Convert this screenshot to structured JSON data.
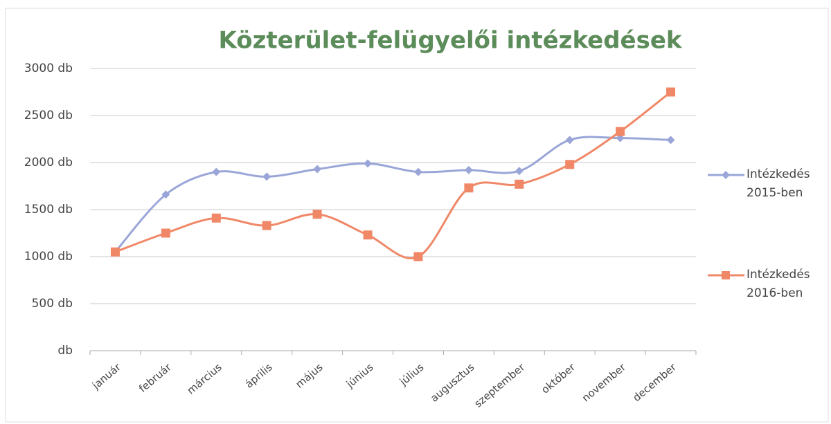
{
  "chart_data": {
    "type": "line",
    "title": "Közterület-felügyelői intézkedések",
    "categories": [
      "január",
      "február",
      "március",
      "április",
      "május",
      "június",
      "július",
      "augusztus",
      "szeptember",
      "október",
      "november",
      "december"
    ],
    "series": [
      {
        "name": "Intézkedés 2015-ben",
        "color": "#9aa6d8",
        "marker": "diamond",
        "values": [
          1050,
          1660,
          1900,
          1850,
          1930,
          1990,
          1900,
          1920,
          1910,
          2240,
          2260,
          2240
        ]
      },
      {
        "name": "Intézkedés 2016-ben",
        "color": "#f08868",
        "marker": "square",
        "values": [
          1050,
          1250,
          1410,
          1330,
          1450,
          1230,
          1000,
          1730,
          1770,
          1980,
          2330,
          2750
        ]
      }
    ],
    "ylim": [
      0,
      3000
    ],
    "yticks": [
      {
        "value": 0,
        "label": "db"
      },
      {
        "value": 500,
        "label": "500 db"
      },
      {
        "value": 1000,
        "label": "1000 db"
      },
      {
        "value": 1500,
        "label": "1500 db"
      },
      {
        "value": 2000,
        "label": "2000 db"
      },
      {
        "value": 2500,
        "label": "2500 db"
      },
      {
        "value": 3000,
        "label": "3000 db"
      }
    ],
    "grid": true,
    "smooth": true,
    "legend": "right"
  }
}
